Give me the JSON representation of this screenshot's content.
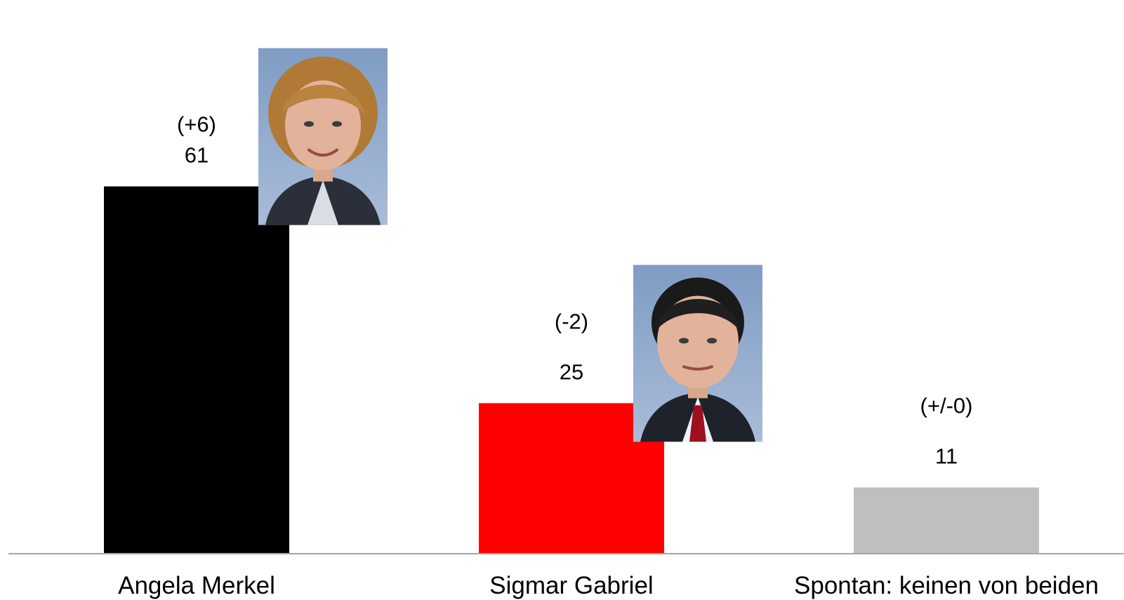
{
  "chart_data": {
    "type": "bar",
    "categories": [
      "Angela Merkel",
      "Sigmar Gabriel",
      "Spontan: keinen von beiden"
    ],
    "values": [
      61,
      25,
      11
    ],
    "changes": [
      "(+6)",
      "(-2)",
      "(+/-0)"
    ],
    "colors": [
      "#000000",
      "#ff0000",
      "#bfbfbf"
    ],
    "ylim": [
      0,
      80
    ],
    "grid": false,
    "legend": "none",
    "portraits": [
      "portrait-icon",
      "portrait-icon",
      null
    ]
  }
}
